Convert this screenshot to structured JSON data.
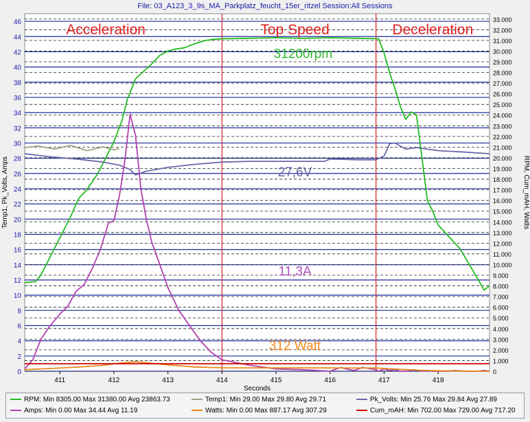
{
  "window": {
    "title": "File: 03_A123_3_9s_MA_Parkplatz_feucht_15er_ritzel   Session:All Sessions"
  },
  "chart_data": {
    "type": "line",
    "xlabel": "Seconds",
    "ylabel_left": "Temp1, Pk_Volts, Amps",
    "ylabel_right": "RPM, Cum_mAH, Watts",
    "xlim": [
      410.35,
      418.95
    ],
    "x_ticks": [
      411,
      412,
      413,
      414,
      415,
      416,
      417,
      418
    ],
    "ylim_left": [
      0,
      47
    ],
    "ylim_right": [
      0,
      33500
    ],
    "y_ticks_left": [
      0,
      2,
      4,
      6,
      8,
      10,
      12,
      14,
      16,
      18,
      20,
      22,
      24,
      26,
      28,
      30,
      32,
      34,
      36,
      38,
      40,
      42,
      44,
      46
    ],
    "y_ticks_right": [
      "0",
      "1.000",
      "2.000",
      "3.000",
      "4.000",
      "5.000",
      "6.000",
      "7.000",
      "8.000",
      "9.000",
      "10.000",
      "11.000",
      "12.000",
      "13.000",
      "14.000",
      "15.000",
      "16.000",
      "17.000",
      "18.000",
      "19.000",
      "20.000",
      "21.000",
      "22.000",
      "23.000",
      "24.000",
      "25.000",
      "26.000",
      "27.000",
      "28.000",
      "29.000",
      "30.000",
      "31.000",
      "32.000",
      "33.000"
    ],
    "grid": true,
    "phase_markers": [
      414.0,
      416.85
    ],
    "phases": [
      {
        "label": "Acceleration",
        "x": 411.85
      },
      {
        "label": "Top Speed",
        "x": 415.35
      },
      {
        "label": "Deceleration",
        "x": 417.9
      }
    ],
    "annotations": [
      {
        "text": "31200rpm",
        "x": 415.5,
        "y": 41.2,
        "color": "#2db82d"
      },
      {
        "text": "27,6V",
        "x": 415.35,
        "y": 25.6,
        "color": "#6868a8"
      },
      {
        "text": "11,3A",
        "x": 415.35,
        "y": 12.6,
        "color": "#b050b8"
      },
      {
        "text": "312 Watt",
        "x": 415.35,
        "y": 2.8,
        "color": "#f08a20"
      }
    ],
    "series": [
      {
        "name": "RPM",
        "axis": "right",
        "color": "#22bb22",
        "x": [
          410.35,
          410.55,
          410.65,
          410.8,
          411.0,
          411.2,
          411.35,
          411.5,
          411.7,
          411.85,
          412.0,
          412.15,
          412.25,
          412.4,
          412.55,
          412.7,
          412.85,
          413.0,
          413.15,
          413.3,
          413.5,
          413.7,
          413.85,
          414.0,
          414.5,
          415.0,
          415.5,
          416.0,
          416.5,
          416.9,
          417.0,
          417.1,
          417.2,
          417.3,
          417.4,
          417.5,
          417.6,
          417.7,
          417.8,
          417.9,
          418.0,
          418.2,
          418.4,
          418.6,
          418.75,
          418.85,
          418.95
        ],
        "y": [
          8305,
          8400,
          9000,
          10500,
          12500,
          14500,
          16200,
          17000,
          18500,
          20000,
          21500,
          23500,
          25500,
          27400,
          28100,
          28800,
          29600,
          30000,
          30200,
          30300,
          30700,
          31000,
          31100,
          31150,
          31200,
          31250,
          31200,
          31250,
          31200,
          31150,
          29800,
          28000,
          26500,
          24800,
          23600,
          24300,
          24000,
          20000,
          16000,
          15000,
          13700,
          12600,
          11500,
          9800,
          8500,
          7600,
          8000
        ]
      },
      {
        "name": "Temp1",
        "axis": "left",
        "color": "#a0a080",
        "x": [
          410.35,
          410.6,
          410.9,
          411.2,
          411.5,
          411.8,
          412.0,
          412.1
        ],
        "y": [
          29.4,
          29.6,
          29.2,
          29.7,
          29.0,
          29.5,
          29.1,
          29.3
        ]
      },
      {
        "name": "Pk_Volts",
        "axis": "left",
        "color": "#6868a8",
        "x": [
          410.35,
          410.8,
          411.3,
          411.8,
          412.1,
          412.3,
          412.4,
          412.6,
          413.0,
          413.5,
          414.0,
          414.5,
          415.0,
          415.5,
          415.9,
          416.0,
          416.5,
          416.85,
          417.0,
          417.1,
          417.2,
          417.4,
          417.6,
          418.0,
          418.5,
          418.95
        ],
        "y": [
          28.6,
          28.2,
          27.9,
          27.5,
          27.1,
          26.5,
          25.8,
          26.3,
          26.8,
          27.2,
          27.5,
          27.6,
          27.6,
          27.6,
          27.6,
          27.9,
          27.8,
          27.8,
          28.3,
          29.9,
          30.0,
          29.2,
          29.4,
          29.0,
          28.8,
          28.6
        ]
      },
      {
        "name": "Amps",
        "axis": "left",
        "color": "#b040b0",
        "x": [
          410.35,
          410.5,
          410.65,
          410.8,
          411.0,
          411.15,
          411.3,
          411.45,
          411.6,
          411.75,
          411.9,
          412.0,
          412.1,
          412.2,
          412.3,
          412.4,
          412.5,
          412.6,
          412.7,
          412.85,
          413.0,
          413.2,
          413.4,
          413.6,
          413.8,
          414.0,
          414.5,
          415.0,
          415.5,
          416.0,
          416.2,
          416.3,
          416.45,
          416.6,
          416.85,
          416.9,
          417.0,
          417.1,
          417.2,
          417.3,
          417.4,
          417.55,
          417.7,
          417.8,
          417.9,
          418.0,
          418.2,
          418.3,
          418.5,
          418.7,
          418.85,
          418.95
        ],
        "y": [
          0.3,
          1.5,
          4.2,
          5.8,
          7.5,
          8.6,
          10.5,
          11.4,
          13.5,
          16.0,
          19.5,
          19.8,
          23.0,
          27.5,
          33.8,
          31.0,
          24.0,
          20.0,
          17.0,
          14.0,
          11.0,
          8.0,
          6.0,
          4.0,
          2.5,
          1.5,
          0.8,
          0.3,
          0.2,
          0.0,
          0.5,
          0.3,
          0.1,
          0.5,
          0.2,
          0.0,
          0.3,
          0.1,
          0.2,
          0.0,
          0.0,
          0.2,
          0.0,
          0.1,
          0.0,
          0.0,
          0.0,
          0.1,
          0.0,
          0.0,
          0.1,
          0.0
        ]
      },
      {
        "name": "Watts",
        "axis": "right",
        "color": "#e88818",
        "x": [
          410.35,
          410.8,
          411.3,
          411.8,
          412.1,
          412.4,
          412.6,
          413.0,
          413.5,
          414.0,
          414.5,
          415.0,
          415.5,
          416.0,
          416.5,
          416.85,
          417.2,
          417.6,
          418.0,
          418.5,
          418.95
        ],
        "y": [
          150,
          250,
          380,
          550,
          750,
          887,
          800,
          600,
          400,
          320,
          312,
          310,
          312,
          310,
          305,
          300,
          200,
          100,
          40,
          10,
          0
        ]
      },
      {
        "name": "Cum_mAH",
        "axis": "right",
        "color": "#cc0000",
        "x": [
          410.35,
          418.85,
          418.95
        ],
        "y": [
          702,
          702,
          729
        ]
      }
    ],
    "legend": [
      {
        "label": "RPM:  Min 8305.00 Max 31380.00 Avg 23863.73",
        "color": "#22bb22"
      },
      {
        "label": "Temp1:  Min 29.00 Max 29.80 Avg 29.71",
        "color": "#a0a080"
      },
      {
        "label": "Pk_Volts:  Min 25.76 Max 29.84 Avg 27.89",
        "color": "#6868a8"
      },
      {
        "label": "Amps:  Min 0.00 Max 34.44 Avg 11.19",
        "color": "#b040b0"
      },
      {
        "label": "Watts:  Min 0.00 Max 887.17 Avg 307.29",
        "color": "#e88818"
      },
      {
        "label": "Cum_mAH:  Min 702.00 Max 729.00 Avg 717.20",
        "color": "#cc0000"
      }
    ]
  }
}
